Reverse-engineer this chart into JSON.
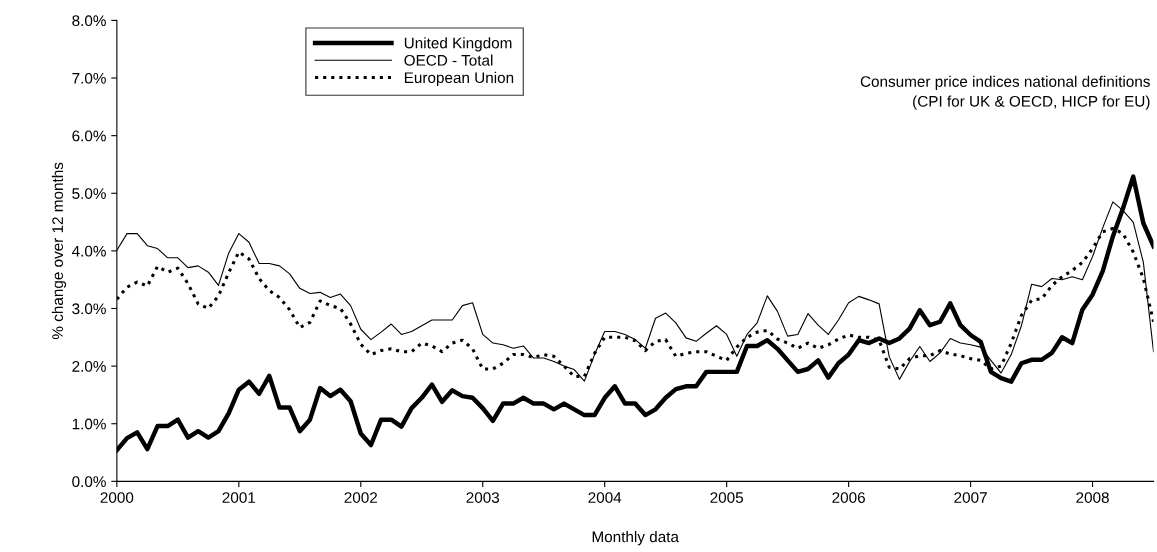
{
  "chart_data": {
    "type": "line",
    "ylabel": "% change over 12 months",
    "xlabel": "Monthly data",
    "annotations": [
      "Consumer price indices national definitions\n(CPI for UK & OECD, HICP for EU)"
    ],
    "x": [
      "2000-01",
      "2000-02",
      "2000-03",
      "2000-04",
      "2000-05",
      "2000-06",
      "2000-07",
      "2000-08",
      "2000-09",
      "2000-10",
      "2000-11",
      "2000-12",
      "2001-01",
      "2001-02",
      "2001-03",
      "2001-04",
      "2001-05",
      "2001-06",
      "2001-07",
      "2001-08",
      "2001-09",
      "2001-10",
      "2001-11",
      "2001-12",
      "2002-01",
      "2002-02",
      "2002-03",
      "2002-04",
      "2002-05",
      "2002-06",
      "2002-07",
      "2002-08",
      "2002-09",
      "2002-10",
      "2002-11",
      "2002-12",
      "2003-01",
      "2003-02",
      "2003-03",
      "2003-04",
      "2003-05",
      "2003-06",
      "2003-07",
      "2003-08",
      "2003-09",
      "2003-10",
      "2003-11",
      "2003-12",
      "2004-01",
      "2004-02",
      "2004-03",
      "2004-04",
      "2004-05",
      "2004-06",
      "2004-07",
      "2004-08",
      "2004-09",
      "2004-10",
      "2004-11",
      "2004-12",
      "2005-01",
      "2005-02",
      "2005-03",
      "2005-04",
      "2005-05",
      "2005-06",
      "2005-07",
      "2005-08",
      "2005-09",
      "2005-10",
      "2005-11",
      "2005-12",
      "2006-01",
      "2006-02",
      "2006-03",
      "2006-04",
      "2006-05",
      "2006-06",
      "2006-07",
      "2006-08",
      "2006-09",
      "2006-10",
      "2006-11",
      "2006-12",
      "2007-01",
      "2007-02",
      "2007-03",
      "2007-04",
      "2007-05",
      "2007-06",
      "2007-07",
      "2007-08",
      "2007-09",
      "2007-10",
      "2007-11",
      "2007-12",
      "2008-01",
      "2008-02",
      "2008-03",
      "2008-04",
      "2008-05",
      "2008-06",
      "2008-07"
    ],
    "series": [
      {
        "name": "United Kingdom",
        "color": "#000000",
        "line_style": "solid",
        "values": [
          0.54,
          0.75,
          0.85,
          0.56,
          0.96,
          0.96,
          1.07,
          0.76,
          0.87,
          0.76,
          0.87,
          1.18,
          1.59,
          1.73,
          1.52,
          1.83,
          1.28,
          1.28,
          0.87,
          1.07,
          1.62,
          1.48,
          1.59,
          1.39,
          0.83,
          0.63,
          1.07,
          1.07,
          0.95,
          1.27,
          1.45,
          1.68,
          1.38,
          1.58,
          1.48,
          1.45,
          1.27,
          1.05,
          1.35,
          1.35,
          1.45,
          1.35,
          1.35,
          1.25,
          1.35,
          1.25,
          1.15,
          1.15,
          1.45,
          1.65,
          1.35,
          1.35,
          1.15,
          1.25,
          1.45,
          1.6,
          1.65,
          1.65,
          1.9,
          1.9,
          1.9,
          1.9,
          2.35,
          2.35,
          2.45,
          2.3,
          2.1,
          1.9,
          1.95,
          2.1,
          1.8,
          2.05,
          2.2,
          2.45,
          2.4,
          2.48,
          2.4,
          2.48,
          2.65,
          2.97,
          2.71,
          2.77,
          3.09,
          2.71,
          2.54,
          2.42,
          1.9,
          1.79,
          1.73,
          2.05,
          2.11,
          2.11,
          2.23,
          2.5,
          2.4,
          2.98,
          3.24,
          3.65,
          4.25,
          4.74,
          5.29,
          4.48,
          4.08
        ]
      },
      {
        "name": "OECD - Total",
        "color": "#000000",
        "line_style": "solid",
        "values": [
          4.01,
          4.3,
          4.3,
          4.09,
          4.04,
          3.88,
          3.88,
          3.71,
          3.74,
          3.63,
          3.4,
          3.96,
          4.3,
          4.15,
          3.78,
          3.78,
          3.74,
          3.6,
          3.35,
          3.26,
          3.28,
          3.19,
          3.25,
          3.05,
          2.64,
          2.46,
          2.59,
          2.73,
          2.55,
          2.6,
          2.7,
          2.8,
          2.8,
          2.8,
          3.05,
          3.1,
          2.55,
          2.4,
          2.37,
          2.31,
          2.35,
          2.14,
          2.14,
          2.08,
          2.0,
          1.94,
          1.74,
          2.2,
          2.6,
          2.6,
          2.55,
          2.46,
          2.31,
          2.83,
          2.92,
          2.75,
          2.49,
          2.43,
          2.57,
          2.7,
          2.55,
          2.17,
          2.55,
          2.75,
          3.22,
          2.95,
          2.52,
          2.55,
          2.91,
          2.71,
          2.55,
          2.8,
          3.1,
          3.21,
          3.15,
          3.08,
          2.16,
          1.77,
          2.08,
          2.34,
          2.08,
          2.23,
          2.48,
          2.4,
          2.37,
          2.33,
          2.1,
          1.88,
          2.2,
          2.7,
          3.42,
          3.38,
          3.52,
          3.5,
          3.55,
          3.5,
          3.9,
          4.4,
          4.85,
          4.7,
          4.5,
          3.8,
          2.25
        ]
      },
      {
        "name": "European Union",
        "color": "#000000",
        "line_style": "dotted",
        "values": [
          3.16,
          3.37,
          3.46,
          3.39,
          3.73,
          3.63,
          3.7,
          3.43,
          3.08,
          3.0,
          3.22,
          3.62,
          3.98,
          3.86,
          3.52,
          3.31,
          3.19,
          2.98,
          2.67,
          2.76,
          3.13,
          3.05,
          3.0,
          2.73,
          2.38,
          2.2,
          2.27,
          2.3,
          2.25,
          2.25,
          2.4,
          2.35,
          2.25,
          2.4,
          2.45,
          2.3,
          1.95,
          1.95,
          2.05,
          2.2,
          2.2,
          2.15,
          2.2,
          2.17,
          2.0,
          1.82,
          1.82,
          2.22,
          2.5,
          2.5,
          2.5,
          2.44,
          2.27,
          2.43,
          2.46,
          2.17,
          2.22,
          2.25,
          2.25,
          2.17,
          2.1,
          2.33,
          2.5,
          2.59,
          2.62,
          2.47,
          2.4,
          2.31,
          2.4,
          2.31,
          2.37,
          2.47,
          2.54,
          2.5,
          2.5,
          2.45,
          1.98,
          1.95,
          2.13,
          2.18,
          2.18,
          2.27,
          2.21,
          2.18,
          2.13,
          2.1,
          1.95,
          2.0,
          2.4,
          2.88,
          3.14,
          3.17,
          3.4,
          3.55,
          3.66,
          3.8,
          4.04,
          4.33,
          4.39,
          4.3,
          3.98,
          3.52,
          2.77
        ]
      }
    ],
    "xlim": [
      "2000-01",
      "2008-07"
    ],
    "xticks": [
      "2000",
      "2001",
      "2002",
      "2003",
      "2004",
      "2005",
      "2006",
      "2007",
      "2008"
    ],
    "ylim": [
      0,
      8
    ],
    "yticks": [
      {
        "value": 0,
        "label": "0.0%"
      },
      {
        "value": 1,
        "label": "1.0%"
      },
      {
        "value": 2,
        "label": "2.0%"
      },
      {
        "value": 3,
        "label": "3.0%"
      },
      {
        "value": 4,
        "label": "4.0%"
      },
      {
        "value": 5,
        "label": "5.0%"
      },
      {
        "value": 6,
        "label": "6.0%"
      },
      {
        "value": 7,
        "label": "7.0%"
      },
      {
        "value": 8,
        "label": "8.0%"
      }
    ],
    "legend": "top",
    "grid": false,
    "marker": "none"
  }
}
